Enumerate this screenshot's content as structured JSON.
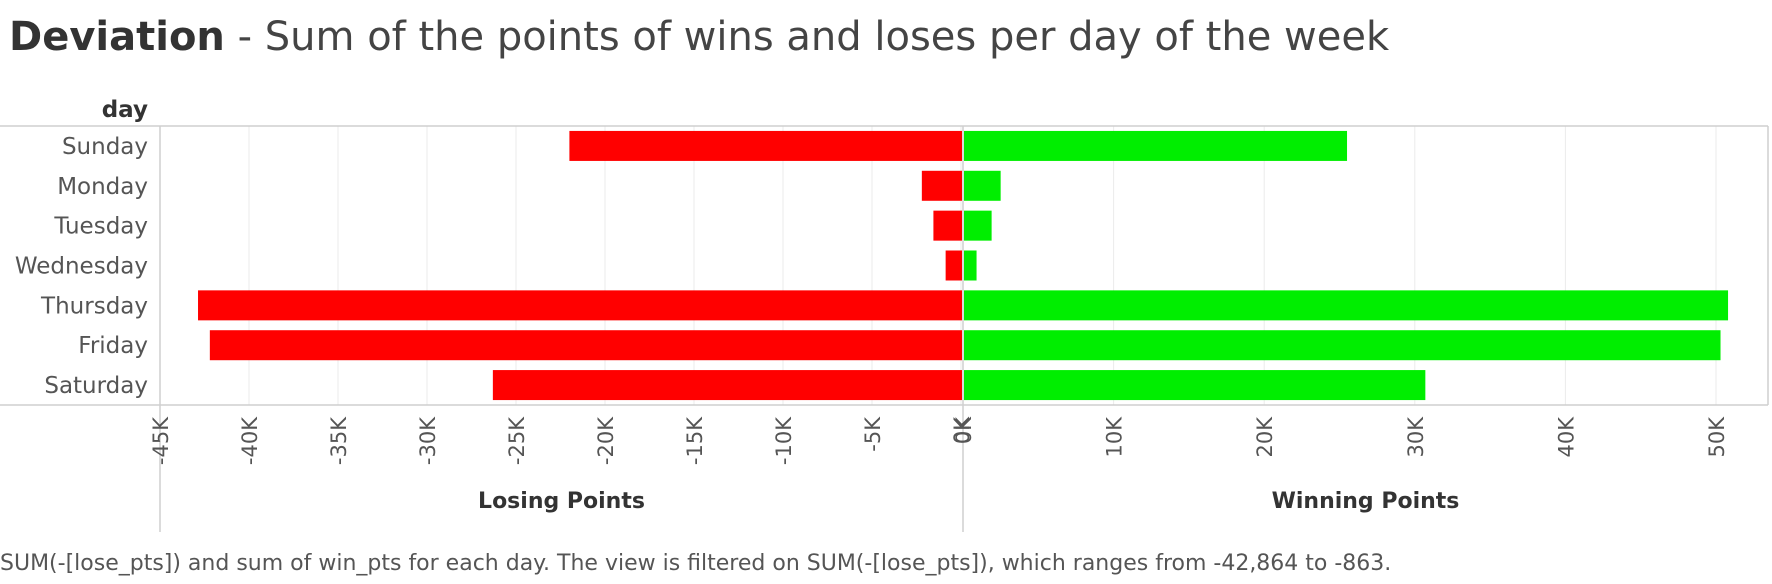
{
  "title": {
    "bold": "Deviation",
    "rest": " - Sum of the points of wins and loses per day of the week"
  },
  "caption": "SUM(-[lose_pts]) and sum of win_pts for each day. The view is filtered on SUM(-[lose_pts]), which ranges from -42,864 to -863.",
  "colors": {
    "losing": "#ff0000",
    "winning": "#00ee00"
  },
  "chart_data": {
    "type": "bar",
    "orientation": "horizontal",
    "row_header": "day",
    "categories": [
      "Sunday",
      "Monday",
      "Tuesday",
      "Wednesday",
      "Thursday",
      "Friday",
      "Saturday"
    ],
    "panels": [
      {
        "name": "Losing Points",
        "xlabel": "Losing Points",
        "xlim": [
          -45000,
          0
        ],
        "ticks": [
          -45000,
          -40000,
          -35000,
          -30000,
          -25000,
          -20000,
          -15000,
          -10000,
          -5000,
          0
        ],
        "tick_labels": [
          "-45K",
          "-40K",
          "-35K",
          "-30K",
          "-25K",
          "-20K",
          "-15K",
          "-10K",
          "-5K",
          "0K"
        ],
        "values": [
          -22000,
          -2200,
          -1550,
          -863,
          -42864,
          -42200,
          -26300
        ],
        "color": "#ff0000"
      },
      {
        "name": "Winning Points",
        "xlabel": "Winning Points",
        "xlim": [
          0,
          50000
        ],
        "ticks": [
          0,
          10000,
          20000,
          30000,
          40000,
          50000
        ],
        "tick_labels": [
          "0K",
          "10K",
          "20K",
          "30K",
          "40K",
          "50K"
        ],
        "values": [
          25500,
          2500,
          1900,
          900,
          50800,
          50300,
          30700
        ],
        "color": "#00ee00"
      }
    ],
    "grid": true,
    "legend": "none"
  }
}
